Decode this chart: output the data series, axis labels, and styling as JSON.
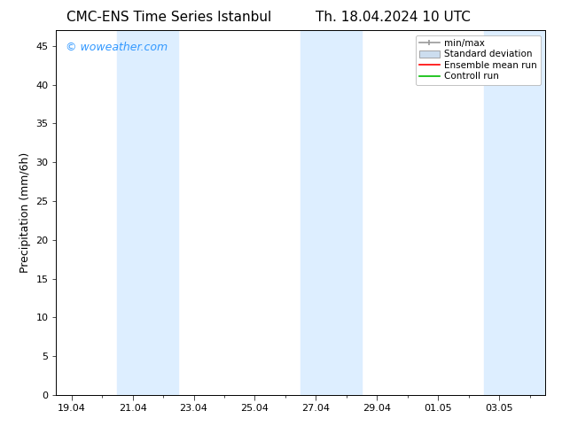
{
  "title_left": "CMC-ENS Time Series Istanbul",
  "title_right": "Th. 18.04.2024 10 UTC",
  "ylabel": "Precipitation (mm/6h)",
  "xlabel": "",
  "watermark": "© woweather.com",
  "watermark_color": "#3399ff",
  "ylim": [
    0,
    47
  ],
  "yticks": [
    0,
    5,
    10,
    15,
    20,
    25,
    30,
    35,
    40,
    45
  ],
  "xtick_labels": [
    "19.04",
    "21.04",
    "23.04",
    "25.04",
    "27.04",
    "29.04",
    "01.05",
    "03.05"
  ],
  "xtick_positions": [
    0,
    2,
    4,
    6,
    8,
    10,
    12,
    14
  ],
  "xmin": -0.5,
  "xmax": 15.5,
  "shaded_bands": [
    {
      "x_start": 1.5,
      "x_end": 3.5,
      "color": "#ddeeff",
      "alpha": 1.0
    },
    {
      "x_start": 7.5,
      "x_end": 9.5,
      "color": "#ddeeff",
      "alpha": 1.0
    },
    {
      "x_start": 13.5,
      "x_end": 15.5,
      "color": "#ddeeff",
      "alpha": 1.0
    }
  ],
  "legend_entries": [
    {
      "label": "min/max",
      "type": "errorbar",
      "color": "#999999"
    },
    {
      "label": "Standard deviation",
      "type": "fillbetween",
      "color": "#ccddef"
    },
    {
      "label": "Ensemble mean run",
      "type": "line",
      "color": "#ff0000"
    },
    {
      "label": "Controll run",
      "type": "line",
      "color": "#00bb00"
    }
  ],
  "background_color": "#ffffff",
  "grid_color": "#dddddd",
  "tick_color": "#000000",
  "font_family": "DejaVu Sans",
  "title_fontsize": 11,
  "tick_fontsize": 8,
  "ylabel_fontsize": 9,
  "watermark_fontsize": 9,
  "legend_fontsize": 7.5
}
